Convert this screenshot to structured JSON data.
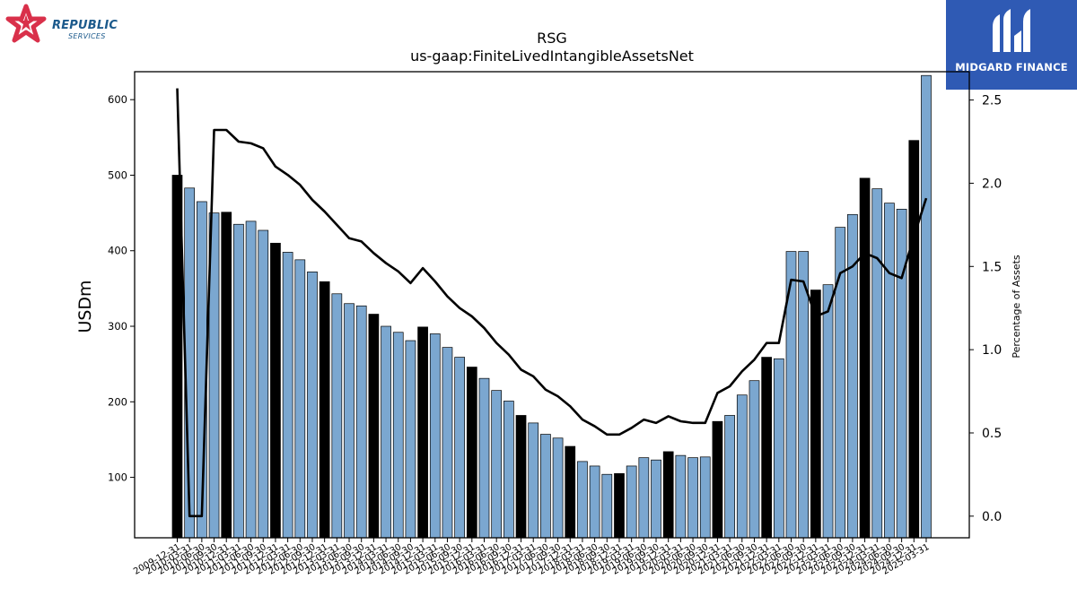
{
  "branding": {
    "left_logo": {
      "name": "REPUBLIC",
      "sub": "SERVICES"
    },
    "right_logo": {
      "name": "MIDGARD FINANCE"
    }
  },
  "chart_data": {
    "type": "bar",
    "title": "RSG",
    "subtitle": "us-gaap:FiniteLivedIntangibleAssetsNet",
    "ylabel": "USDm",
    "y2label": "Percentage of Assets",
    "ylim": [
      20,
      637
    ],
    "y2lim": [
      -0.13,
      2.67
    ],
    "yticks": [
      100,
      200,
      300,
      400,
      500,
      600
    ],
    "y2ticks": [
      0.0,
      0.5,
      1.0,
      1.5,
      2.0,
      2.5
    ],
    "y2tick_labels": [
      "0.0",
      "0.5",
      "1.0",
      "1.5",
      "2.0",
      "2.5"
    ],
    "colors": {
      "bar_annual": "#000000",
      "bar_quarter": "#7ba7d0",
      "bar_edge": "#000000",
      "line": "#000000"
    },
    "categories": [
      "2009-12-31",
      "2010-03-31",
      "2010-06-30",
      "2010-09-30",
      "2010-12-31",
      "2011-03-31",
      "2011-06-30",
      "2011-09-30",
      "2011-12-31",
      "2012-03-31",
      "2012-06-30",
      "2012-09-30",
      "2012-12-31",
      "2013-03-31",
      "2013-06-30",
      "2013-09-30",
      "2013-12-31",
      "2014-03-31",
      "2014-06-30",
      "2014-09-30",
      "2014-12-31",
      "2015-03-31",
      "2015-06-30",
      "2015-09-30",
      "2015-12-31",
      "2016-03-31",
      "2016-06-30",
      "2016-09-30",
      "2016-12-31",
      "2017-03-31",
      "2017-06-30",
      "2017-09-30",
      "2017-12-31",
      "2018-03-31",
      "2018-06-30",
      "2018-09-30",
      "2018-12-31",
      "2019-03-31",
      "2019-06-30",
      "2019-09-30",
      "2019-12-31",
      "2020-03-31",
      "2020-06-30",
      "2020-09-30",
      "2020-12-31",
      "2021-03-31",
      "2021-06-30",
      "2021-09-30",
      "2021-12-31",
      "2022-03-31",
      "2022-06-30",
      "2022-09-30",
      "2022-12-31",
      "2023-03-31",
      "2023-06-30",
      "2023-09-30",
      "2023-12-31",
      "2024-03-31",
      "2024-06-30",
      "2024-09-30",
      "2024-12-31",
      "2025-03-31"
    ],
    "series": [
      {
        "values": [
          500,
          483,
          465,
          450,
          451,
          435,
          439,
          427,
          410,
          398,
          388,
          372,
          359,
          343,
          330,
          327,
          316,
          300,
          292,
          281,
          299,
          290,
          272,
          259,
          246,
          231,
          215,
          201,
          182,
          172,
          157,
          152,
          141,
          121,
          115,
          104,
          105,
          115,
          126,
          123,
          134,
          129,
          126,
          127,
          174,
          182,
          209,
          228,
          259,
          257,
          399,
          399,
          348,
          355,
          431,
          448,
          496,
          482,
          463,
          455,
          546,
          632
        ],
        "annual": [
          true,
          false,
          false,
          false,
          true,
          false,
          false,
          false,
          true,
          false,
          false,
          false,
          true,
          false,
          false,
          false,
          true,
          false,
          false,
          false,
          true,
          false,
          false,
          false,
          true,
          false,
          false,
          false,
          true,
          false,
          false,
          false,
          true,
          false,
          false,
          false,
          true,
          false,
          false,
          false,
          true,
          false,
          false,
          false,
          true,
          false,
          false,
          false,
          true,
          false,
          false,
          false,
          true,
          false,
          false,
          false,
          true,
          false,
          false,
          false,
          true,
          false
        ]
      },
      {
        "axis": "right",
        "values": [
          2.57,
          0.0,
          0.0,
          2.32,
          2.32,
          2.25,
          2.24,
          2.21,
          2.1,
          2.05,
          1.99,
          1.9,
          1.83,
          1.75,
          1.67,
          1.65,
          1.58,
          1.52,
          1.47,
          1.4,
          1.49,
          1.41,
          1.32,
          1.25,
          1.2,
          1.13,
          1.04,
          0.97,
          0.88,
          0.84,
          0.76,
          0.72,
          0.66,
          0.58,
          0.54,
          0.49,
          0.49,
          0.53,
          0.58,
          0.56,
          0.6,
          0.57,
          0.56,
          0.56,
          0.74,
          0.78,
          0.87,
          0.94,
          1.04,
          1.04,
          1.42,
          1.41,
          1.2,
          1.23,
          1.46,
          1.5,
          1.58,
          1.55,
          1.46,
          1.43,
          1.68,
          1.91
        ]
      }
    ]
  }
}
